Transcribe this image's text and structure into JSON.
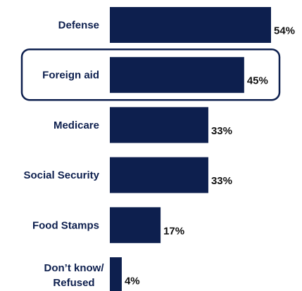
{
  "chart_data": {
    "type": "bar",
    "orientation": "horizontal",
    "title": "",
    "xlabel": "",
    "ylabel": "",
    "categories": [
      "Defense",
      "Foreign aid",
      "Medicare",
      "Social Security",
      "Food Stamps",
      "Don’t know/\nRefused"
    ],
    "values": [
      54,
      45,
      33,
      33,
      17,
      4
    ],
    "value_labels": [
      "54%",
      "45%",
      "33%",
      "33%",
      "17%",
      "4%"
    ],
    "xlim": [
      0,
      54
    ],
    "highlighted_category": "Foreign aid",
    "grid": false,
    "legend": "none"
  },
  "colors": {
    "bar": "#0d1f4e",
    "category_text": "#0d1f4e",
    "value_text": "#111111",
    "highlight_border": "#0d1f4e"
  }
}
